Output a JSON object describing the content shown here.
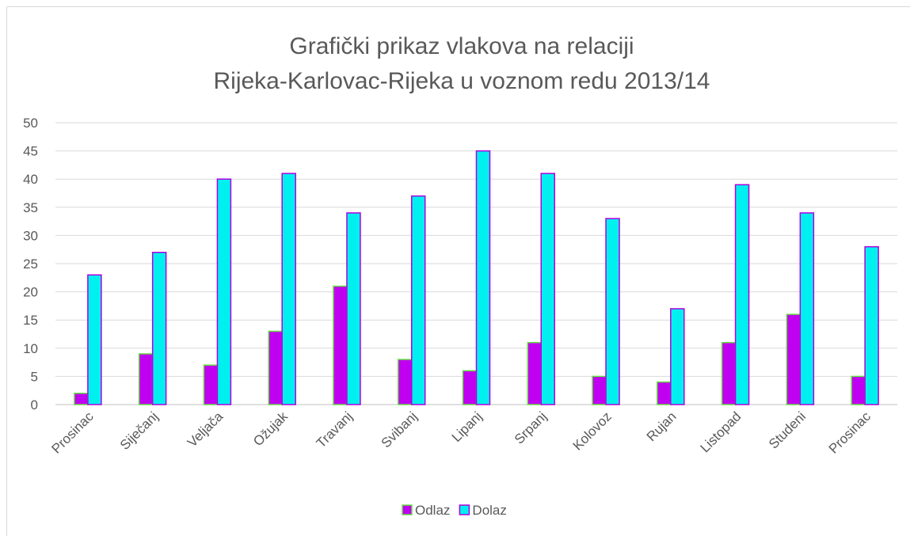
{
  "chart_data": {
    "type": "bar",
    "title": [
      "Grafički prikaz vlakova na relaciji",
      "Rijeka-Karlovac-Rijeka u voznom redu 2013/14"
    ],
    "categories": [
      "Prosinac",
      "Siječanj",
      "Veljača",
      "Ožujak",
      "Travanj",
      "Svibanj",
      "Lipanj",
      "Srpanj",
      "Kolovoz",
      "Rujan",
      "Listopad",
      "Studeni",
      "Prosinac"
    ],
    "series": [
      {
        "name": "Odlaz",
        "color": "#c000f0",
        "border": "#66dd44",
        "values": [
          2,
          9,
          7,
          13,
          21,
          8,
          6,
          11,
          5,
          4,
          11,
          16,
          5
        ]
      },
      {
        "name": "Dolaz",
        "color": "#00f0f0",
        "border": "#b000e0",
        "values": [
          23,
          27,
          40,
          41,
          34,
          37,
          45,
          41,
          33,
          17,
          39,
          34,
          28
        ]
      }
    ],
    "ylim": [
      0,
      50
    ],
    "yticks": [
      0,
      5,
      10,
      15,
      20,
      25,
      30,
      35,
      40,
      45,
      50
    ],
    "grid": true,
    "legend": "bottom"
  }
}
